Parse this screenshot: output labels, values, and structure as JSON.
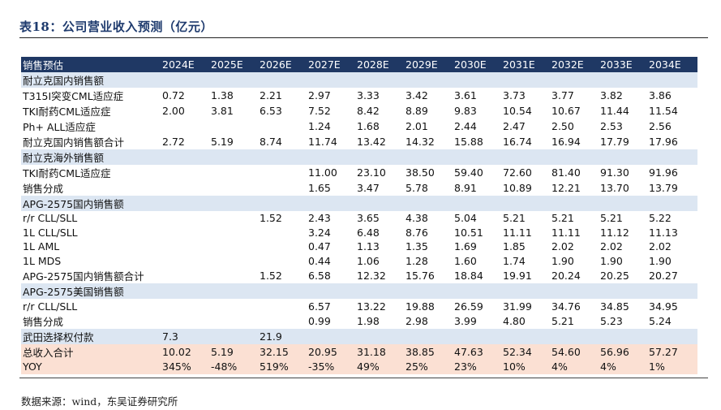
{
  "title": "表18：公司营业收入预测（亿元）",
  "source": "数据来源：wind，东吴证券研究所",
  "table": {
    "header": [
      "销售预估",
      "2024E",
      "2025E",
      "2026E",
      "2027E",
      "2028E",
      "2029E",
      "2030E",
      "2031E",
      "2032E",
      "2033E",
      "2034E"
    ],
    "rows": [
      {
        "type": "section",
        "cells": [
          "耐立克国内销售额",
          "",
          "",
          "",
          "",
          "",
          "",
          "",
          "",
          "",
          "",
          ""
        ]
      },
      {
        "type": "data",
        "cells": [
          "T315I突变CML适应症",
          "0.72",
          "1.38",
          "2.21",
          "2.97",
          "3.33",
          "3.42",
          "3.61",
          "3.73",
          "3.77",
          "3.82",
          "3.86"
        ]
      },
      {
        "type": "data",
        "cells": [
          "TKI耐药CML适应症",
          "2.00",
          "3.81",
          "6.53",
          "7.52",
          "8.42",
          "8.89",
          "9.83",
          "10.54",
          "10.67",
          "11.44",
          "11.54"
        ]
      },
      {
        "type": "data",
        "cells": [
          "Ph+ ALL适应症",
          "",
          "",
          "",
          "1.24",
          "1.68",
          "2.01",
          "2.44",
          "2.47",
          "2.50",
          "2.53",
          "2.56"
        ]
      },
      {
        "type": "data",
        "cells": [
          "耐立克国内销售额合计",
          "2.72",
          "5.19",
          "8.74",
          "11.74",
          "13.42",
          "14.32",
          "15.88",
          "16.74",
          "16.94",
          "17.79",
          "17.96"
        ]
      },
      {
        "type": "section",
        "cells": [
          "耐立克海外销售额",
          "",
          "",
          "",
          "",
          "",
          "",
          "",
          "",
          "",
          "",
          ""
        ]
      },
      {
        "type": "data",
        "cells": [
          "TKI耐药CML适应症",
          "",
          "",
          "",
          "11.00",
          "23.10",
          "38.50",
          "59.40",
          "72.60",
          "81.40",
          "91.30",
          "91.96"
        ]
      },
      {
        "type": "data",
        "cells": [
          "销售分成",
          "",
          "",
          "",
          "1.65",
          "3.47",
          "5.78",
          "8.91",
          "10.89",
          "12.21",
          "13.70",
          "13.79"
        ]
      },
      {
        "type": "section",
        "cells": [
          "APG-2575国内销售额",
          "",
          "",
          "",
          "",
          "",
          "",
          "",
          "",
          "",
          "",
          ""
        ]
      },
      {
        "type": "data",
        "cells": [
          "r/r CLL/SLL",
          "",
          "",
          "1.52",
          "2.43",
          "3.65",
          "4.38",
          "5.04",
          "5.21",
          "5.21",
          "5.21",
          "5.22"
        ]
      },
      {
        "type": "data",
        "cells": [
          "1L CLL/SLL",
          "",
          "",
          "",
          "3.24",
          "6.48",
          "8.76",
          "10.51",
          "11.11",
          "11.11",
          "11.12",
          "11.13"
        ]
      },
      {
        "type": "data",
        "cells": [
          "1L AML",
          "",
          "",
          "",
          "0.47",
          "1.13",
          "1.35",
          "1.69",
          "1.85",
          "2.02",
          "2.02",
          "2.02"
        ]
      },
      {
        "type": "data",
        "cells": [
          "1L MDS",
          "",
          "",
          "",
          "0.44",
          "1.06",
          "1.28",
          "1.60",
          "1.74",
          "1.90",
          "1.90",
          "1.90"
        ]
      },
      {
        "type": "data",
        "cells": [
          "APG-2575国内销售额合计",
          "",
          "",
          "1.52",
          "6.58",
          "12.32",
          "15.76",
          "18.84",
          "19.91",
          "20.24",
          "20.25",
          "20.27"
        ]
      },
      {
        "type": "section",
        "cells": [
          "APG-2575美国销售额",
          "",
          "",
          "",
          "",
          "",
          "",
          "",
          "",
          "",
          "",
          ""
        ]
      },
      {
        "type": "data",
        "cells": [
          "r/r CLL/SLL",
          "",
          "",
          "",
          "6.57",
          "13.22",
          "19.88",
          "26.59",
          "31.99",
          "34.76",
          "34.85",
          "34.95"
        ]
      },
      {
        "type": "data",
        "cells": [
          "销售分成",
          "",
          "",
          "",
          "0.99",
          "1.98",
          "2.98",
          "3.99",
          "4.80",
          "5.21",
          "5.23",
          "5.24"
        ]
      },
      {
        "type": "section",
        "cells": [
          "武田选择权付款",
          "7.3",
          "",
          "21.9",
          "",
          "",
          "",
          "",
          "",
          "",
          "",
          ""
        ]
      },
      {
        "type": "total",
        "cells": [
          "总收入合计",
          "10.02",
          "5.19",
          "32.15",
          "20.95",
          "31.18",
          "38.85",
          "47.63",
          "52.34",
          "54.60",
          "56.96",
          "57.27"
        ]
      },
      {
        "type": "yoy",
        "cells": [
          "YOY",
          "345%",
          "-48%",
          "519%",
          "-35%",
          "49%",
          "25%",
          "23%",
          "10%",
          "4%",
          "4%",
          "1%"
        ]
      }
    ]
  }
}
